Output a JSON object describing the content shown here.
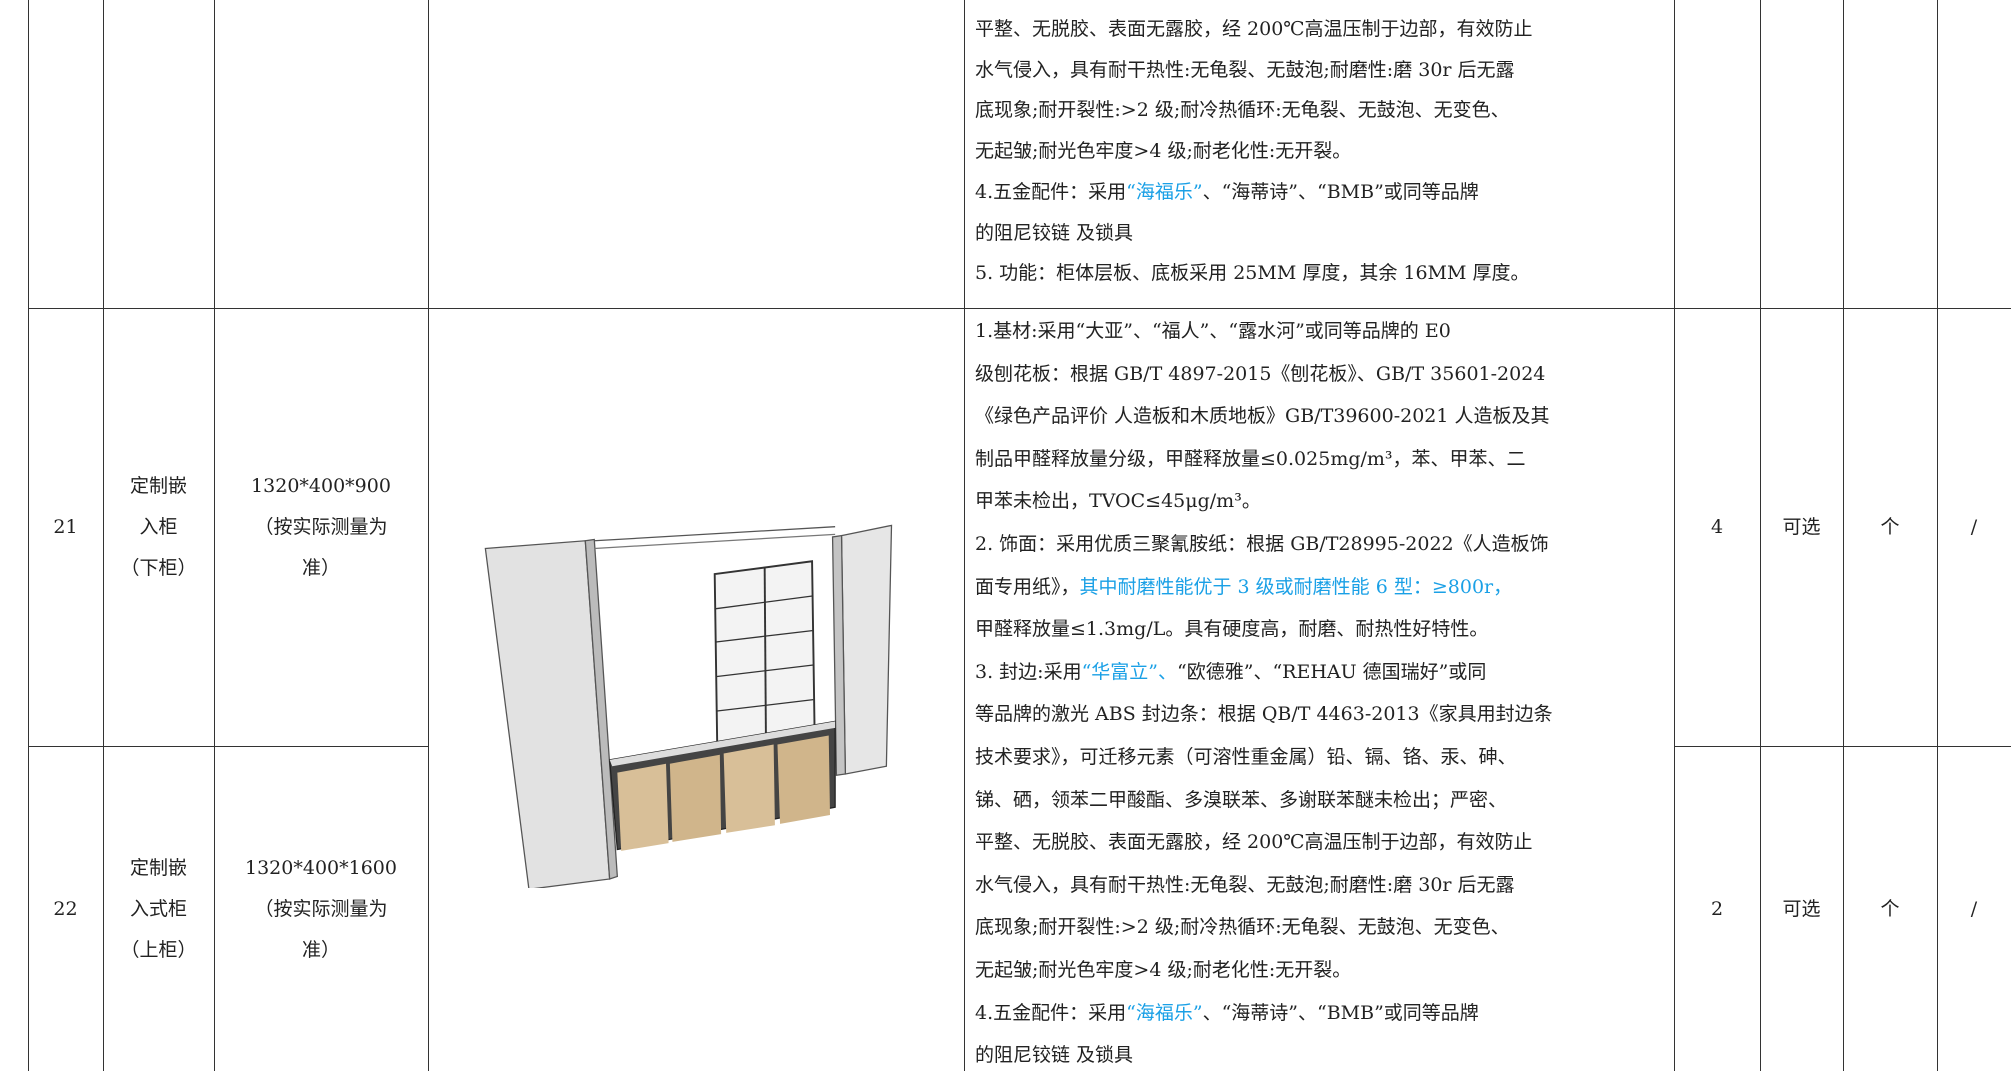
{
  "table": {
    "top_description": [
      [
        {
          "text": "平整、无脱胶、表面无露胶，经 200℃高温压制于边部，有效防止"
        }
      ],
      [
        {
          "text": "水气侵入，具有耐干热性:无龟裂、无鼓泡;耐磨性:磨 30r 后无露"
        }
      ],
      [
        {
          "text": "底现象;耐开裂性:>2 级;耐冷热循环:无龟裂、无鼓泡、无变色、"
        }
      ],
      [
        {
          "text": "无起皱;耐光色牢度>4 级;耐老化性:无开裂。"
        }
      ],
      [
        {
          "text": "4.五金配件：采用"
        },
        {
          "text": "“海福乐”",
          "color": "#1aa0e6"
        },
        {
          "text": "、“海蒂诗”、“BMB”或同等品牌"
        }
      ],
      [
        {
          "text": "的阻尼铰链 及锁具"
        }
      ],
      [
        {
          "text": "5. 功能：柜体层板、底板采用 25MM 厚度，其余 16MM 厚度。"
        }
      ]
    ],
    "rows": [
      {
        "no": "21",
        "name": [
          "定制嵌",
          "入柜",
          "（下柜）"
        ],
        "spec": [
          "1320*400*900",
          "（按实际测量为",
          "准）"
        ],
        "qty": "4",
        "option": "可选",
        "unit": "个",
        "remark": "/"
      },
      {
        "no": "22",
        "name": [
          "定制嵌",
          "入式柜",
          "（上柜）"
        ],
        "spec": [
          "1320*400*1600",
          "（按实际测量为",
          "准）"
        ],
        "qty": "2",
        "option": "可选",
        "unit": "个",
        "remark": "/"
      }
    ],
    "shared_description": [
      [
        {
          "text": "1.基材:采用“大亚”、“福人”、“露水河”或同等品牌的 E0"
        }
      ],
      [
        {
          "text": "级刨花板：根据 GB/T 4897-2015《刨花板》、GB/T 35601-2024"
        }
      ],
      [
        {
          "text": "《绿色产品评价 人造板和木质地板》GB/T39600-2021 人造板及其"
        }
      ],
      [
        {
          "text": "制品甲醛释放量分级，甲醛释放量≤0.025mg/m³，苯、甲苯、二"
        }
      ],
      [
        {
          "text": "甲苯未检出，TVOC≤45μg/m³。"
        }
      ],
      [
        {
          "text": "2. 饰面：采用优质三聚氰胺纸：根据 GB/T28995-2022《人造板饰"
        }
      ],
      [
        {
          "text": "面专用纸》，"
        },
        {
          "text": "其中耐磨性能优于 3 级或耐磨性能 6 型：≥800r，",
          "color": "#1aa0e6"
        }
      ],
      [
        {
          "text": "甲醛释放量≤1.3mg/L。具有硬度高，耐磨、耐热性好特性。"
        }
      ],
      [
        {
          "text": "3. 封边:采用"
        },
        {
          "text": "“华富立”、",
          "color": "#1aa0e6"
        },
        {
          "text": "“欧德雅”、“REHAU 德国瑞好”或同"
        }
      ],
      [
        {
          "text": "等品牌的激光 ABS 封边条：根据 QB/T 4463-2013《家具用封边条"
        }
      ],
      [
        {
          "text": "技术要求》，可迁移元素（可溶性重金属）铅、镉、铬、汞、砷、"
        }
      ],
      [
        {
          "text": "锑、硒，领苯二甲酸酯、多溴联苯、多谢联苯醚未检出；严密、"
        }
      ],
      [
        {
          "text": "平整、无脱胶、表面无露胶，经 200℃高温压制于边部，有效防止"
        }
      ],
      [
        {
          "text": "水气侵入，具有耐干热性:无龟裂、无鼓泡;耐磨性:磨 30r 后无露"
        }
      ],
      [
        {
          "text": "底现象;耐开裂性:>2 级;耐冷热循环:无龟裂、无鼓泡、无变色、"
        }
      ],
      [
        {
          "text": "无起皱;耐光色牢度>4 级;耐老化性:无开裂。"
        }
      ],
      [
        {
          "text": "4.五金配件：采用"
        },
        {
          "text": "“海福乐”",
          "color": "#1aa0e6"
        },
        {
          "text": "、“海蒂诗”、“BMB”或同等品牌"
        }
      ],
      [
        {
          "text": "的阻尼铰链 及锁具"
        }
      ]
    ]
  }
}
